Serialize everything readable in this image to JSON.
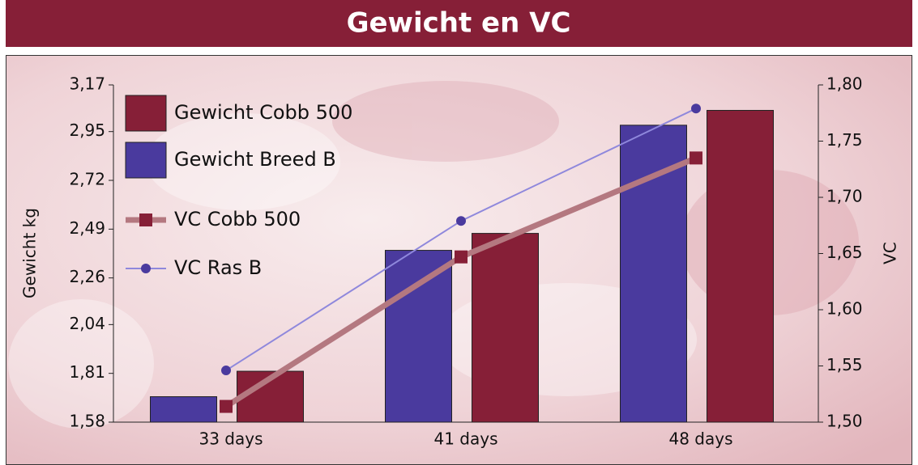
{
  "chart_data": {
    "type": "bar",
    "title": "Gewicht en VC",
    "categories": [
      "33 days",
      "41 days",
      "48 days"
    ],
    "y_label": "Gewicht kg",
    "y2_label": "VC",
    "ylim": [
      1.58,
      3.17
    ],
    "yticks": [
      {
        "value": 1.58,
        "label": "1,58"
      },
      {
        "value": 1.81,
        "label": "1,81"
      },
      {
        "value": 2.04,
        "label": "2,04"
      },
      {
        "value": 2.26,
        "label": "2,26"
      },
      {
        "value": 2.49,
        "label": "2,49"
      },
      {
        "value": 2.72,
        "label": "2,72"
      },
      {
        "value": 2.95,
        "label": "2,95"
      },
      {
        "value": 3.17,
        "label": "3,17"
      }
    ],
    "y2lim": [
      1.5,
      1.8
    ],
    "y2ticks": [
      {
        "value": 1.5,
        "label": "1,50"
      },
      {
        "value": 1.55,
        "label": "1,55"
      },
      {
        "value": 1.6,
        "label": "1,60"
      },
      {
        "value": 1.65,
        "label": "1,65"
      },
      {
        "value": 1.7,
        "label": "1,70"
      },
      {
        "value": 1.75,
        "label": "1,75"
      },
      {
        "value": 1.8,
        "label": "1,80"
      }
    ],
    "legend": "top-left",
    "series": [
      {
        "name": "Gewicht Cobb 500",
        "type": "bar",
        "color": "#861f37",
        "values": [
          1.82,
          2.47,
          3.05
        ]
      },
      {
        "name": "Gewicht Breed B",
        "type": "bar",
        "color": "#4a3a9e",
        "values": [
          1.7,
          2.39,
          2.98
        ]
      },
      {
        "name": "VC Cobb 500",
        "type": "line",
        "axis": "y2",
        "color": "#b47880",
        "marker_color": "#861f37",
        "values": [
          1.514,
          1.647,
          1.735
        ]
      },
      {
        "name": "VC Ras B",
        "type": "line",
        "axis": "y2",
        "color": "#8f88dc",
        "marker_color": "#4a3a9e",
        "values": [
          1.546,
          1.679,
          1.779
        ]
      }
    ]
  }
}
